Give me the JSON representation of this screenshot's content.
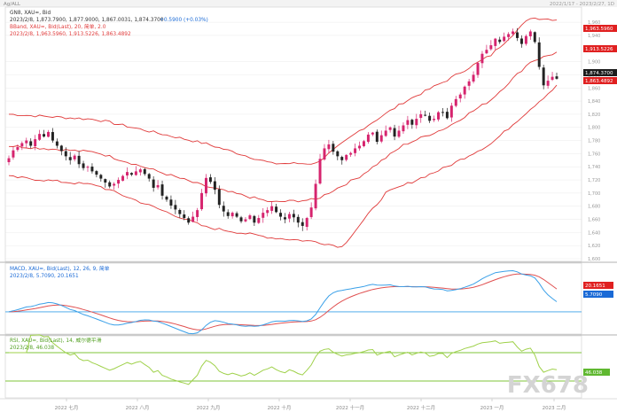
{
  "colors": {
    "up": "#d6246e",
    "down": "#222222",
    "band": "#e03a3a",
    "macd": "#3aa0e8",
    "signal": "#e05050",
    "zero": "#3aa0e8",
    "rsi": "#9fd14a",
    "rsiLevel": "#7fc43a",
    "grid": "#e6e6e6",
    "frame": "#999999",
    "tagRed": "#e02020",
    "tagBlue": "#1a6ad6",
    "tagGreen": "#5fb830",
    "tagDark": "#1c1c1c"
  },
  "topbar": {
    "left": "Ag/ALL",
    "right": "2022/1/17 - 2023/2/27, 1D"
  },
  "main": {
    "header": "GN8, XAU=, Bid",
    "ohlc": "2023/2/8, 1,873.7900, 1,877.9000, 1,867.0031, 1,874.3700",
    "change": "+0.5900 (+0.03%)",
    "bband_header": "BBand, XAU=, Bid(Last), 20, 简单, 2.0",
    "bband_values": "2023/2/8, 1,963.5960, 1,913.5226, 1,863.4892"
  },
  "macd": {
    "header": "MACD, XAU=, Bid(Last), 12, 26, 9, 简单",
    "values": "2023/2/8, 5.7090, 20.1651"
  },
  "rsi": {
    "header": "RSI, XAU=, Bid(Last), 14, 威尔德平滑",
    "values": "2023/2/8, 46.038"
  },
  "price_axis": [
    "1,960",
    "1,940",
    "1,900",
    "1,880",
    "1,860",
    "1,840",
    "1,820",
    "1,800",
    "1,780",
    "1,760",
    "1,740",
    "1,720",
    "1,700",
    "1,680",
    "1,660",
    "1,640",
    "1,620",
    "1,600"
  ],
  "tags": {
    "bb_upper": "1,963.5960",
    "bb_mid": "1,913.5226",
    "last": "1,874.3700",
    "bb_lower": "1,863.4892",
    "macd_signal": "20.1651",
    "macd": "5.7090",
    "rsi": "46.038"
  },
  "x_axis": [
    "2022 七月",
    "2022 八月",
    "2022 九月",
    "2022 十月",
    "2022 十一月",
    "2022 十二月",
    "2023 一月",
    "2023 二月"
  ],
  "watermark": "FX678",
  "chart_data": {
    "type": "candlestick",
    "instrument": "XAU=",
    "ylim": [
      1600,
      1975
    ],
    "closes": [
      1753,
      1765,
      1770,
      1776,
      1780,
      1772,
      1782,
      1790,
      1786,
      1793,
      1780,
      1772,
      1764,
      1756,
      1750,
      1757,
      1744,
      1738,
      1740,
      1733,
      1728,
      1722,
      1716,
      1710,
      1714,
      1720,
      1726,
      1732,
      1728,
      1733,
      1736,
      1729,
      1722,
      1708,
      1712,
      1696,
      1690,
      1681,
      1675,
      1668,
      1662,
      1655,
      1664,
      1674,
      1700,
      1723,
      1717,
      1705,
      1682,
      1672,
      1665,
      1670,
      1664,
      1657,
      1660,
      1666,
      1655,
      1662,
      1670,
      1674,
      1680,
      1671,
      1664,
      1660,
      1668,
      1663,
      1655,
      1650,
      1662,
      1678,
      1714,
      1752,
      1768,
      1774,
      1763,
      1756,
      1750,
      1758,
      1761,
      1768,
      1772,
      1779,
      1789,
      1792,
      1778,
      1788,
      1795,
      1800,
      1786,
      1795,
      1803,
      1811,
      1804,
      1813,
      1820,
      1818,
      1810,
      1813,
      1823,
      1823,
      1814,
      1833,
      1843,
      1850,
      1862,
      1870,
      1880,
      1898,
      1912,
      1918,
      1925,
      1935,
      1930,
      1938,
      1942,
      1946,
      1936,
      1927,
      1939,
      1946,
      1930,
      1892,
      1864,
      1871,
      1877,
      1874
    ],
    "bb_upper_anchors": [
      [
        0,
        1820
      ],
      [
        20,
        1812
      ],
      [
        45,
        1775
      ],
      [
        60,
        1745
      ],
      [
        70,
        1745
      ],
      [
        80,
        1795
      ],
      [
        90,
        1838
      ],
      [
        100,
        1872
      ],
      [
        110,
        1910
      ],
      [
        119,
        1967
      ],
      [
        125,
        1964
      ]
    ],
    "bb_mid_anchors": [
      [
        0,
        1772
      ],
      [
        20,
        1762
      ],
      [
        45,
        1710
      ],
      [
        60,
        1686
      ],
      [
        70,
        1690
      ],
      [
        80,
        1725
      ],
      [
        90,
        1773
      ],
      [
        100,
        1800
      ],
      [
        110,
        1842
      ],
      [
        119,
        1900
      ],
      [
        125,
        1914
      ]
    ],
    "bb_lower_anchors": [
      [
        0,
        1725
      ],
      [
        20,
        1712
      ],
      [
        45,
        1648
      ],
      [
        60,
        1632
      ],
      [
        70,
        1626
      ],
      [
        76,
        1618
      ],
      [
        86,
        1700
      ],
      [
        100,
        1740
      ],
      [
        110,
        1775
      ],
      [
        119,
        1828
      ],
      [
        125,
        1863
      ]
    ],
    "macd_range": [
      -20,
      45
    ],
    "rsi_levels": [
      30,
      70
    ],
    "rsi_last": 46.038
  }
}
